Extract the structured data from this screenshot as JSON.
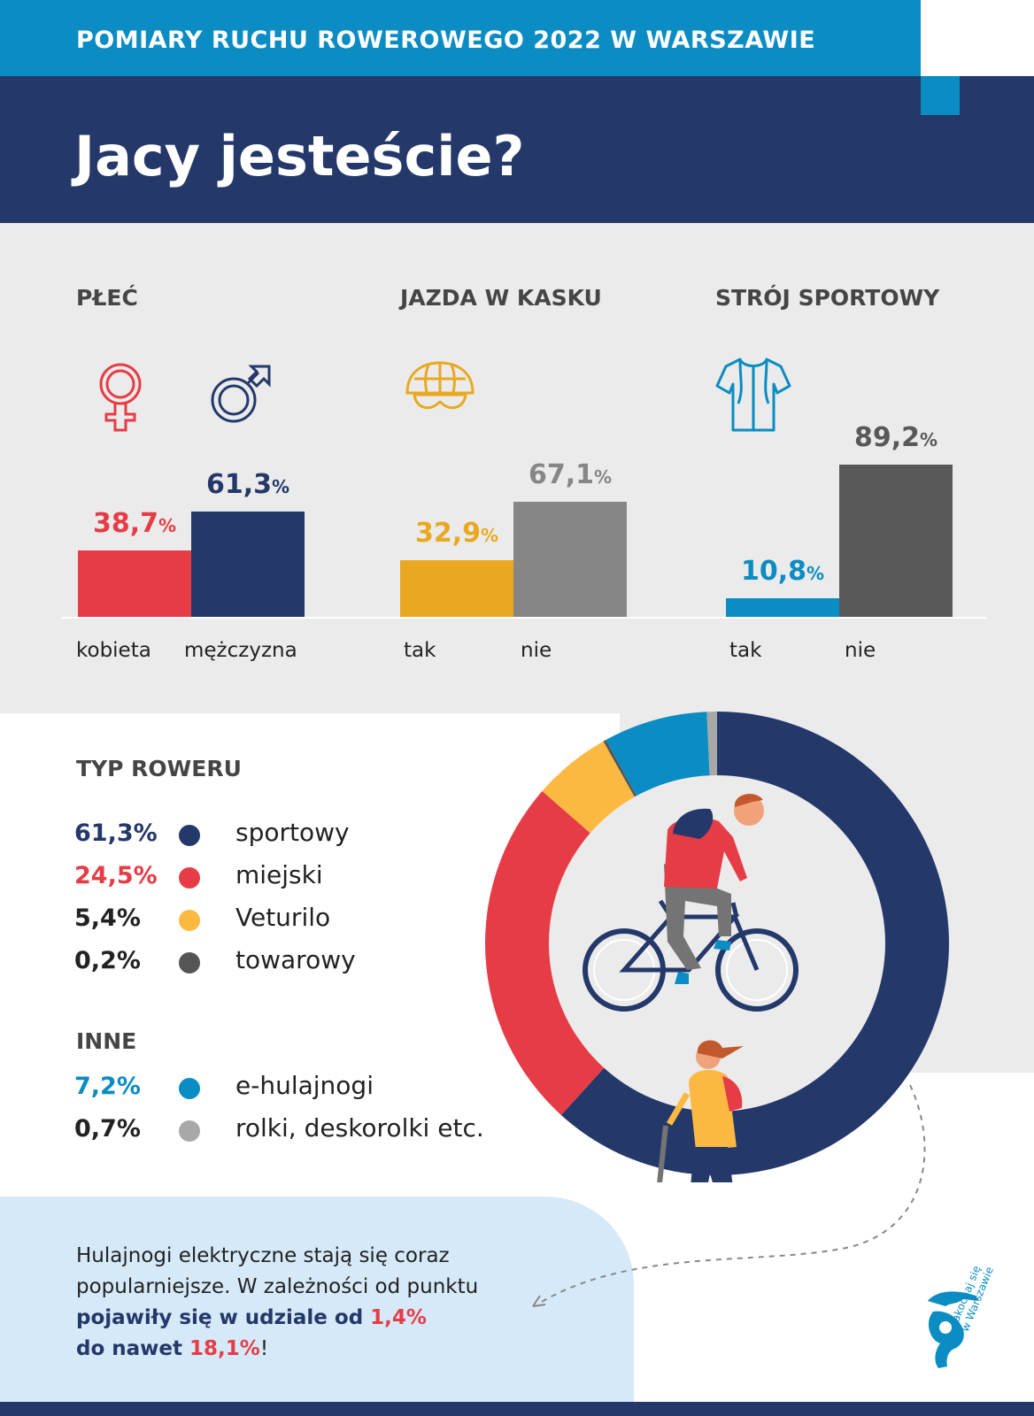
{
  "header": {
    "band_title": "POMIARY RUCHU ROWEROWEGO 2022 W WARSZAWIE",
    "title": "Jacy jesteście?"
  },
  "colors": {
    "navy": "#24386a",
    "blue": "#0b8cc3",
    "red": "#e63c46",
    "mustard": "#e9a820",
    "yellow": "#fbb942",
    "gray_mid": "#868686",
    "gray_dark": "#595959",
    "gray_light": "#a8a8a8"
  },
  "icons": [
    "female-symbol-icon",
    "male-symbol-icon",
    "bike-helmet-icon",
    "cycling-jersey-icon",
    "cyclist-illustration",
    "scooter-rider-illustration",
    "logo"
  ],
  "chart_data": [
    {
      "type": "bar",
      "title": "PŁEĆ",
      "categories": [
        "kobieta",
        "mężczyzna"
      ],
      "values": [
        38.7,
        61.3
      ],
      "value_labels": [
        "38,7",
        "61,3"
      ],
      "unit": "%",
      "colors": [
        "#e63c46",
        "#24386a"
      ]
    },
    {
      "type": "bar",
      "title": "JAZDA W KASKU",
      "categories": [
        "tak",
        "nie"
      ],
      "values": [
        32.9,
        67.1
      ],
      "value_labels": [
        "32,9",
        "67,1"
      ],
      "unit": "%",
      "colors": [
        "#e9a820",
        "#868686"
      ]
    },
    {
      "type": "bar",
      "title": "STRÓJ SPORTOWY",
      "categories": [
        "tak",
        "nie"
      ],
      "values": [
        10.8,
        89.2
      ],
      "value_labels": [
        "10,8",
        "89,2"
      ],
      "unit": "%",
      "colors": [
        "#0b8cc3",
        "#595959"
      ]
    },
    {
      "type": "pie",
      "title": "TYP ROWERU",
      "subtitle": "INNE",
      "slices": [
        {
          "label": "sportowy",
          "value": 61.3,
          "value_label": "61,3%",
          "color": "#24386a",
          "group": "TYP ROWERU"
        },
        {
          "label": "miejski",
          "value": 24.5,
          "value_label": "24,5%",
          "color": "#e63c46",
          "group": "TYP ROWERU"
        },
        {
          "label": "Veturilo",
          "value": 5.4,
          "value_label": "5,4%",
          "color": "#fbb942",
          "group": "TYP ROWERU"
        },
        {
          "label": "towarowy",
          "value": 0.2,
          "value_label": "0,2%",
          "color": "#555555",
          "group": "TYP ROWERU"
        },
        {
          "label": "e-hulajnogi",
          "value": 7.2,
          "value_label": "7,2%",
          "color": "#0b8cc3",
          "group": "INNE"
        },
        {
          "label": "rolki, deskorolki etc.",
          "value": 0.7,
          "value_label": "0,7%",
          "color": "#a8a8a8",
          "group": "INNE"
        }
      ],
      "pct_colors": [
        "#24386a",
        "#e63c46",
        "#222222",
        "#222222",
        "#0b8cc3",
        "#222222"
      ]
    }
  ],
  "note": {
    "line1": "Hulajnogi elektryczne stają się coraz",
    "line2": "popularniejsze. W zależności od punktu",
    "line3_bold": "pojawiły się w udziale od ",
    "line3_val": "1,4%",
    "line4_bold": "do nawet ",
    "line4_val": "18,1%",
    "line4_end": "!"
  },
  "logo": {
    "text_line1": "zakochaj się",
    "text_line2": "w Warszawie"
  }
}
